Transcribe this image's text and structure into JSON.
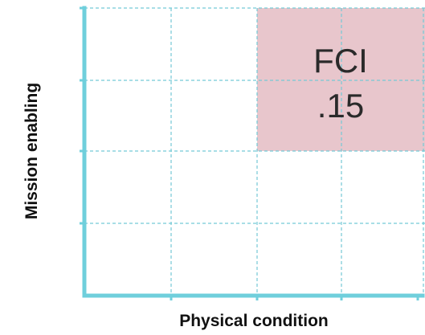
{
  "diagram": {
    "x_axis_label": "Physical condition",
    "y_axis_label": "Mission enabling",
    "highlight_box": {
      "line1": "FCI",
      "line2": ".15",
      "fill_color": "#e8c6cc"
    },
    "colors": {
      "axis": "#6fcfdc",
      "grid": "#74c9d6"
    }
  }
}
